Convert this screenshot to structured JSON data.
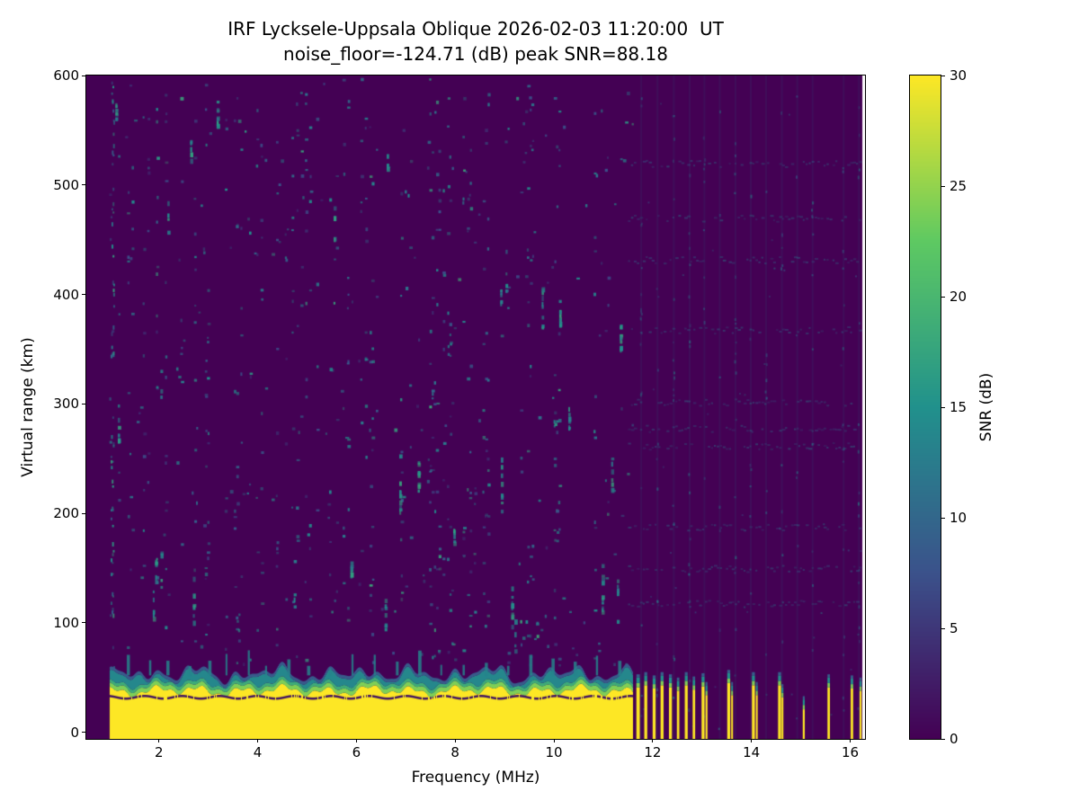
{
  "chart_data": {
    "type": "heatmap",
    "title": "IRF Lycksele-Uppsala Oblique 2026-02-03 11:20:00  UT",
    "subtitle": "noise_floor=-124.71 (dB) peak SNR=88.18",
    "xlabel": "Frequency (MHz)",
    "ylabel": "Virtual range (km)",
    "colorbar_label": "SNR (dB)",
    "xlim": [
      0.53,
      16.3
    ],
    "ylim": [
      -6,
      600
    ],
    "clim": [
      0,
      30
    ],
    "x_ticks": [
      2,
      4,
      6,
      8,
      10,
      12,
      14,
      16
    ],
    "y_ticks": [
      0,
      100,
      200,
      300,
      400,
      500,
      600
    ],
    "colorbar_ticks": [
      0,
      5,
      10,
      15,
      20,
      25,
      30
    ],
    "colormap": "viridis",
    "colormap_stops": [
      [
        0,
        "#440154"
      ],
      [
        0.25,
        "#3b528b"
      ],
      [
        0.5,
        "#21918c"
      ],
      [
        0.75,
        "#5ec962"
      ],
      [
        1,
        "#fde725"
      ]
    ],
    "data_extent_mhz": [
      0.53,
      16.25
    ],
    "features": {
      "description": "Oblique ionogram: saturated direct-signal band (SNR >= 30 dB) from 0 to ~40 km virtual range sweeping 1.0-11.57 MHz, teal transition to ~60 km with wavy crest, thin low-SNR gap near 33 km; above 11.6 MHz transmission becomes intermittent narrow vertical stripes; sparse teal RFI speckles over dark ~0 dB background, denser below 11.5 MHz; faint vertical interference columns and horizontal noise rows on the right side; data ends at 16.25 MHz leaving a white sliver before the right spine",
      "ground_band": {
        "f_start": 1.02,
        "f_end": 11.57,
        "yellow_top_km": 40,
        "teal_top_km": 60,
        "gap_km": 33
      },
      "stripes": [
        [
          11.67,
          0.07,
          50
        ],
        [
          11.83,
          0.06,
          52
        ],
        [
          12.0,
          0.06,
          49
        ],
        [
          12.16,
          0.06,
          52
        ],
        [
          12.33,
          0.06,
          50
        ],
        [
          12.49,
          0.05,
          47
        ],
        [
          12.65,
          0.06,
          52
        ],
        [
          12.81,
          0.05,
          48
        ],
        [
          12.99,
          0.06,
          51
        ],
        [
          13.07,
          0.04,
          43
        ],
        [
          13.51,
          0.06,
          54
        ],
        [
          13.59,
          0.03,
          43
        ],
        [
          14.01,
          0.06,
          52
        ],
        [
          14.09,
          0.03,
          43
        ],
        [
          14.54,
          0.06,
          52
        ],
        [
          14.61,
          0.03,
          41
        ],
        [
          15.04,
          0.04,
          30
        ],
        [
          15.54,
          0.05,
          50
        ],
        [
          16.01,
          0.05,
          49
        ],
        [
          16.19,
          0.04,
          47
        ]
      ],
      "faint_columns_mhz": [
        11.75,
        12.08,
        12.41,
        12.73,
        13.03,
        13.34,
        13.66,
        13.97,
        14.28,
        14.6,
        14.91,
        15.22,
        15.85,
        16.16
      ],
      "faint_rows_km": [
        118,
        150,
        188,
        262,
        278,
        302,
        368,
        432,
        470,
        520
      ],
      "noise_column_mhz": 1.05,
      "plume_freqs_mhz": [
        1.35,
        1.8,
        2.15,
        2.6,
        3.0,
        3.35,
        3.8,
        4.15,
        4.6,
        5.0,
        5.45,
        5.9,
        6.35,
        6.8,
        7.25,
        7.7,
        8.15,
        8.6,
        9.05,
        9.5,
        9.95,
        10.4,
        10.85,
        11.3
      ],
      "noise_speckle_snr_db": [
        4,
        18
      ]
    },
    "render": {
      "seed": 1337
    }
  }
}
